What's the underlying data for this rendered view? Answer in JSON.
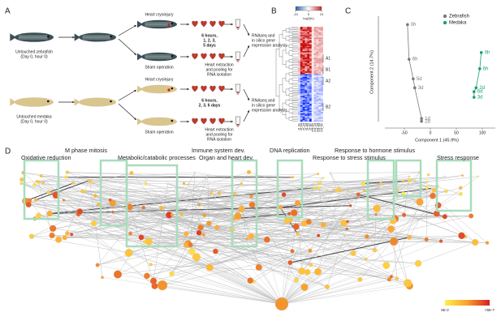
{
  "panel_a": {
    "label": "A",
    "zebrafish": {
      "untouched": [
        "Untouched zebrafish",
        "(Day 0, hour 0)"
      ],
      "injury": "Heart cryoinjury",
      "timepoints": [
        "6 hours,",
        "1, 2, 3,",
        "5 days"
      ],
      "sham": "Sham operation",
      "extraction": [
        "Heart extraction",
        "and pooling for",
        "RNA isolation"
      ],
      "analysis": [
        "RNAseq and",
        "in silico gene",
        "expression analysis"
      ]
    },
    "medaka": {
      "untouched": [
        "Untouched medaka",
        "(Day 0, hour 0)"
      ],
      "injury": "Heart cryoinjury",
      "timepoints": [
        "6 hours,",
        "2, 3, 6 days"
      ],
      "sham": "Sham operation",
      "extraction": [
        "Heart extraction",
        "and pooling for",
        "RNA isolation"
      ],
      "analysis": [
        "RNAseq and",
        "in silico gene",
        "expression analysis"
      ]
    }
  },
  "panel_b": {
    "label": "B",
    "colorbar": {
      "ticks": [
        -10,
        0,
        10
      ],
      "title": "log2(fc)"
    },
    "columns": [
      "zf_0h",
      "zf_1d",
      "zf_2d",
      "zf_3d",
      "zf_5d",
      "zf_6h",
      "md_0h",
      "md_2d",
      "md_3d",
      "md_6d",
      "md_6h"
    ],
    "clusters": [
      "A1",
      "B1",
      "A2",
      "B2"
    ]
  },
  "chart_data": {
    "type": "scatter",
    "label": "C",
    "xlabel": "Component 1 (45.9%)",
    "ylabel": "Component 2 (14.7%)",
    "xlim": [
      -100,
      125
    ],
    "ylim": [
      -100,
      100
    ],
    "xticks": [
      -50,
      0,
      50,
      100
    ],
    "legend": "top-right",
    "series": [
      {
        "name": "Zebrafish",
        "color": "#7a7a7a",
        "x": [
          -44,
          -41,
          -33,
          -30,
          -17,
          -17
        ],
        "values": [
          85,
          23,
          -12,
          -28,
          -83,
          -88
        ],
        "labels": [
          "0h",
          "6h",
          "5d",
          "3d",
          "1d",
          "2d"
        ]
      },
      {
        "name": "Medaka",
        "color": "#1a9e77",
        "x": [
          98,
          95,
          88,
          84,
          84
        ],
        "values": [
          35,
          6,
          -28,
          -35,
          -45
        ],
        "labels": [
          "0h",
          "6h",
          "2d",
          "6d",
          "3d"
        ]
      }
    ]
  },
  "panel_d": {
    "label": "D",
    "terms": [
      "Oxidative reduction",
      "M phase mitosis",
      "Metabolic/catabolic processes",
      "Immune system dev.",
      "Organ and heart dev.",
      "DNA replication",
      "Response to hormone stimulus",
      "Response to stress stimulus",
      "Stress response"
    ],
    "colorbar": {
      "low": "5E-2",
      "high": "<5E-7"
    }
  }
}
